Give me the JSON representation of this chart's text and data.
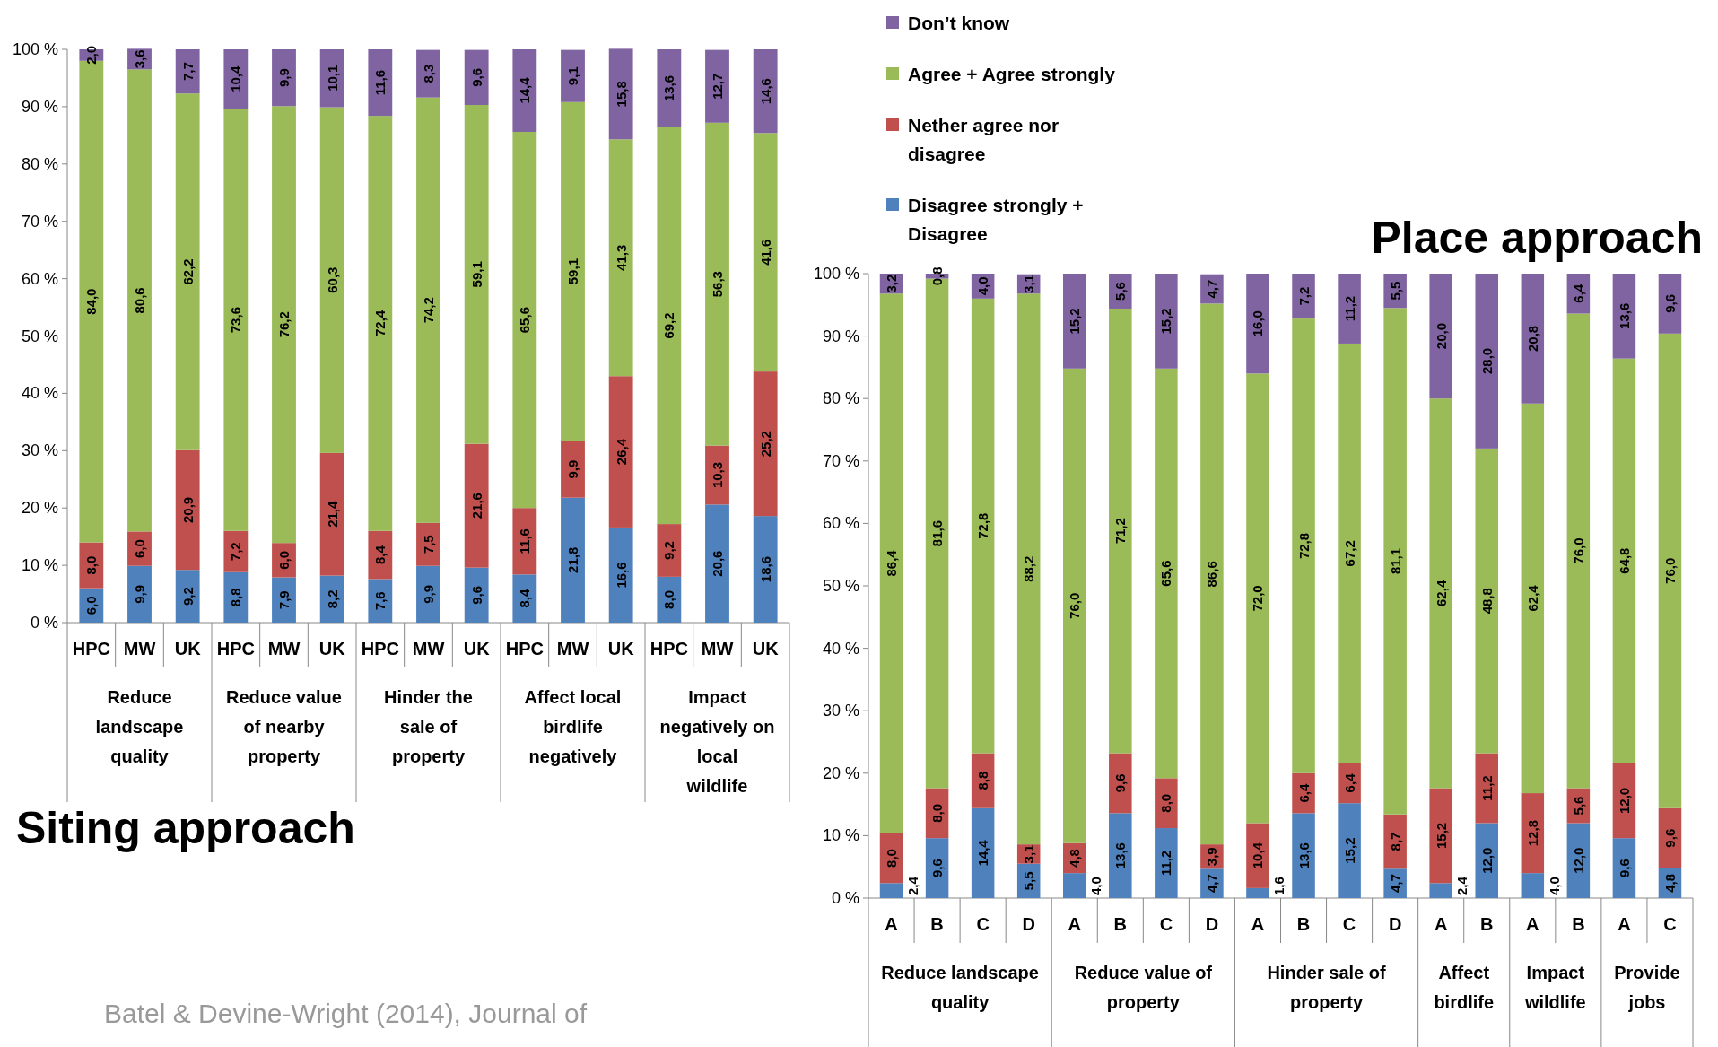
{
  "chart_data": [
    {
      "type": "bar",
      "stacked": true,
      "title": "Siting approach",
      "categories": [
        "HPC",
        "MW",
        "UK",
        "HPC",
        "MW",
        "UK",
        "HPC",
        "MW",
        "UK",
        "HPC",
        "MW",
        "UK",
        "HPC",
        "MW",
        "UK"
      ],
      "ylim": [
        0,
        100
      ],
      "yticks": [
        {
          "value": 0,
          "label": "0 %"
        },
        {
          "value": 10,
          "label": "10 %"
        },
        {
          "value": 20,
          "label": "20 %"
        },
        {
          "value": 30,
          "label": "30 %"
        },
        {
          "value": 40,
          "label": "40 %"
        },
        {
          "value": 50,
          "label": "50 %"
        },
        {
          "value": 60,
          "label": "60 %"
        },
        {
          "value": 70,
          "label": "70 %"
        },
        {
          "value": 80,
          "label": "80 %"
        },
        {
          "value": 90,
          "label": "90 %"
        },
        {
          "value": 100,
          "label": "100 %"
        }
      ],
      "series": [
        {
          "color": "#4f81bd",
          "values": [
            6.0,
            9.9,
            9.2,
            8.8,
            7.9,
            8.2,
            7.6,
            9.9,
            9.6,
            8.4,
            21.8,
            16.6,
            8.0,
            20.6,
            18.6
          ],
          "value_labels": [
            "6,0",
            "9,9",
            "9,2",
            "8,8",
            "7,9",
            "8,2",
            "7,6",
            "9,9",
            "9,6",
            "8,4",
            "21,8",
            "16,6",
            "8,0",
            "20,6",
            "18,6"
          ]
        },
        {
          "color": "#c0504d",
          "values": [
            8.0,
            6.0,
            20.9,
            7.2,
            6.0,
            21.4,
            8.4,
            7.5,
            21.6,
            11.6,
            9.9,
            26.4,
            9.2,
            10.3,
            25.2
          ],
          "value_labels": [
            "8,0",
            "6,0",
            "20,9",
            "7,2",
            "6,0",
            "21,4",
            "8,4",
            "7,5",
            "21,6",
            "11,6",
            "9,9",
            "26,4",
            "9,2",
            "10,3",
            "25,2"
          ]
        },
        {
          "color": "#9bbb59",
          "values": [
            84.0,
            80.6,
            62.2,
            73.6,
            76.2,
            60.3,
            72.4,
            74.2,
            59.1,
            65.6,
            59.1,
            41.3,
            69.2,
            56.3,
            41.6
          ],
          "value_labels": [
            "84,0",
            "80,6",
            "62,2",
            "73,6",
            "76,2",
            "60,3",
            "72,4",
            "74,2",
            "59,1",
            "65,6",
            "59,1",
            "41,3",
            "69,2",
            "56,3",
            "41,6"
          ]
        },
        {
          "color": "#8064a2",
          "values": [
            2.0,
            3.6,
            7.7,
            10.4,
            9.9,
            10.1,
            11.6,
            8.3,
            9.6,
            14.4,
            9.1,
            15.8,
            13.6,
            12.7,
            14.6
          ],
          "value_labels": [
            "2,0",
            "3,6",
            "7,7",
            "10,4",
            "9,9",
            "10,1",
            "11,6",
            "8,3",
            "9,6",
            "14,4",
            "9,1",
            "15,8",
            "13,6",
            "12,7",
            "14,6"
          ]
        }
      ],
      "annotations": [
        "Reduce landscape quality",
        "Reduce value of nearby property",
        "Hinder the sale of property",
        "Affect local birdlife negatively",
        "Impact negatively on local wildlife",
        "Batel & Devine-Wright (2014), Journal of"
      ]
    },
    {
      "type": "bar",
      "stacked": true,
      "title": "Place approach",
      "legend": "top left",
      "categories": [
        "A",
        "B",
        "C",
        "D",
        "A",
        "B",
        "C",
        "D",
        "A",
        "B",
        "C",
        "D",
        "A",
        "B",
        "A",
        "B",
        "A",
        "C"
      ],
      "ylim": [
        0,
        100
      ],
      "yticks": [
        {
          "value": 0,
          "label": "0 %"
        },
        {
          "value": 10,
          "label": "10 %"
        },
        {
          "value": 20,
          "label": "20 %"
        },
        {
          "value": 30,
          "label": "30 %"
        },
        {
          "value": 40,
          "label": "40 %"
        },
        {
          "value": 50,
          "label": "50 %"
        },
        {
          "value": 60,
          "label": "60 %"
        },
        {
          "value": 70,
          "label": "70 %"
        },
        {
          "value": 80,
          "label": "80 %"
        },
        {
          "value": 90,
          "label": "90 %"
        },
        {
          "value": 100,
          "label": "100 %"
        }
      ],
      "series": [
        {
          "name": "Disagree strongly + Disagree",
          "color": "#4f81bd",
          "values": [
            2.4,
            9.6,
            14.4,
            5.5,
            4.0,
            13.6,
            11.2,
            4.7,
            1.6,
            13.6,
            15.2,
            4.7,
            2.4,
            12.0,
            4.0,
            12.0,
            9.6,
            4.8
          ],
          "value_labels": [
            "2,4",
            "9,6",
            "14,4",
            "5,5",
            "4,0",
            "13,6",
            "11,2",
            "4,7",
            "1,6",
            "13,6",
            "15,2",
            "4,7",
            "2,4",
            "12,0",
            "4,0",
            "12,0",
            "9,6",
            "4,8"
          ]
        },
        {
          "name": "Nether agree nor disagree",
          "color": "#c0504d",
          "values": [
            8.0,
            8.0,
            8.8,
            3.1,
            4.8,
            9.6,
            8.0,
            3.9,
            10.4,
            6.4,
            6.4,
            8.7,
            15.2,
            11.2,
            12.8,
            5.6,
            12.0,
            9.6
          ],
          "value_labels": [
            "8,0",
            "8,0",
            "8,8",
            "3,1",
            "4,8",
            "9,6",
            "8,0",
            "3,9",
            "10,4",
            "6,4",
            "6,4",
            "8,7",
            "15,2",
            "11,2",
            "12,8",
            "5,6",
            "12,0",
            "9,6"
          ]
        },
        {
          "name": "Agree + Agree strongly",
          "color": "#9bbb59",
          "values": [
            86.4,
            81.6,
            72.8,
            88.2,
            76.0,
            71.2,
            65.6,
            86.6,
            72.0,
            72.8,
            67.2,
            81.1,
            62.4,
            48.8,
            62.4,
            76.0,
            64.8,
            76.0
          ],
          "value_labels": [
            "86,4",
            "81,6",
            "72,8",
            "88,2",
            "76,0",
            "71,2",
            "65,6",
            "86,6",
            "72,0",
            "72,8",
            "67,2",
            "81,1",
            "62,4",
            "48,8",
            "62,4",
            "76,0",
            "64,8",
            "76,0"
          ]
        },
        {
          "name": "Don’t know",
          "color": "#8064a2",
          "values": [
            3.2,
            0.8,
            4.0,
            3.1,
            15.2,
            5.6,
            15.2,
            4.7,
            16.0,
            7.2,
            11.2,
            5.5,
            20.0,
            28.0,
            20.8,
            6.4,
            13.6,
            9.6
          ],
          "value_labels": [
            "3,2",
            "0,8",
            "4,0",
            "3,1",
            "15,2",
            "5,6",
            "15,2",
            "4,7",
            "16,0",
            "7,2",
            "11,2",
            "5,5",
            "20,0",
            "28,0",
            "20,8",
            "6,4",
            "13,6",
            "9,6"
          ]
        }
      ],
      "annotations": [
        "Reduce landscape quality",
        "Reduce value of property",
        "Hinder sale of property",
        "Affect birdlife",
        "Impact wildlife",
        "Provide jobs"
      ]
    }
  ]
}
